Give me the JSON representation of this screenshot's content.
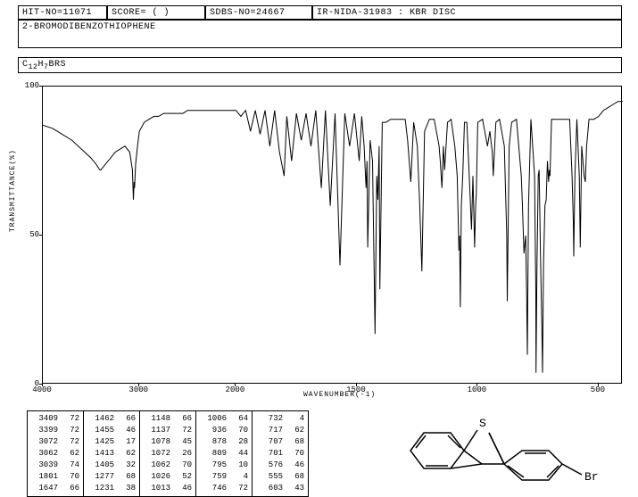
{
  "header": {
    "hit_no": "HIT-NO=11071",
    "score": "SCORE=   (   )",
    "sdbs_no": "SDBS-NO=24667",
    "ir_info": "IR-NIDA-31983 : KBR DISC",
    "compound": "2-BROMODIBENZOTHIOPHENE",
    "formula_prefix": "C",
    "formula_c": "12",
    "formula_mid": "H",
    "formula_h": "7",
    "formula_suffix": "BRS"
  },
  "axes": {
    "y_label": "TRANSMITTANCE(%)",
    "x_label": "WAVENUMBER(-1)",
    "y_ticks": [
      {
        "v": "100",
        "pos": 0
      },
      {
        "v": "50",
        "pos": 50
      },
      {
        "v": "0",
        "pos": 100
      }
    ],
    "x_ticks": [
      {
        "v": "4000",
        "wn": 4000
      },
      {
        "v": "3000",
        "wn": 3000
      },
      {
        "v": "2000",
        "wn": 2000
      },
      {
        "v": "1500",
        "wn": 1500
      },
      {
        "v": "1000",
        "wn": 1000
      },
      {
        "v": "500",
        "wn": 500
      }
    ],
    "x_break": 2000,
    "x_range_left": [
      4000,
      2000
    ],
    "x_range_right": [
      2000,
      400
    ],
    "break_frac": 0.333
  },
  "spectrum": {
    "color": "#000000",
    "points": [
      [
        4000,
        87
      ],
      [
        3900,
        86
      ],
      [
        3800,
        84
      ],
      [
        3700,
        82
      ],
      [
        3600,
        79
      ],
      [
        3500,
        76
      ],
      [
        3450,
        74
      ],
      [
        3409,
        72
      ],
      [
        3399,
        72
      ],
      [
        3350,
        74
      ],
      [
        3300,
        76
      ],
      [
        3250,
        78
      ],
      [
        3200,
        79
      ],
      [
        3150,
        80
      ],
      [
        3100,
        78
      ],
      [
        3072,
        72
      ],
      [
        3062,
        62
      ],
      [
        3055,
        68
      ],
      [
        3050,
        66
      ],
      [
        3039,
        74
      ],
      [
        3020,
        80
      ],
      [
        3000,
        85
      ],
      [
        2950,
        88
      ],
      [
        2900,
        89
      ],
      [
        2850,
        90
      ],
      [
        2800,
        90
      ],
      [
        2750,
        91
      ],
      [
        2700,
        91
      ],
      [
        2650,
        91
      ],
      [
        2600,
        91
      ],
      [
        2550,
        91
      ],
      [
        2500,
        92
      ],
      [
        2450,
        92
      ],
      [
        2400,
        92
      ],
      [
        2350,
        92
      ],
      [
        2300,
        92
      ],
      [
        2250,
        92
      ],
      [
        2200,
        92
      ],
      [
        2150,
        92
      ],
      [
        2100,
        92
      ],
      [
        2050,
        92
      ],
      [
        2000,
        92
      ],
      [
        1980,
        90
      ],
      [
        1960,
        92
      ],
      [
        1940,
        85
      ],
      [
        1920,
        92
      ],
      [
        1900,
        84
      ],
      [
        1880,
        92
      ],
      [
        1860,
        80
      ],
      [
        1840,
        92
      ],
      [
        1820,
        78
      ],
      [
        1801,
        70
      ],
      [
        1790,
        90
      ],
      [
        1770,
        75
      ],
      [
        1750,
        91
      ],
      [
        1730,
        82
      ],
      [
        1710,
        91
      ],
      [
        1690,
        80
      ],
      [
        1670,
        92
      ],
      [
        1647,
        66
      ],
      [
        1630,
        92
      ],
      [
        1610,
        60
      ],
      [
        1590,
        91
      ],
      [
        1570,
        40
      ],
      [
        1550,
        91
      ],
      [
        1530,
        80
      ],
      [
        1510,
        91
      ],
      [
        1490,
        75
      ],
      [
        1480,
        90
      ],
      [
        1470,
        80
      ],
      [
        1462,
        66
      ],
      [
        1458,
        75
      ],
      [
        1455,
        46
      ],
      [
        1445,
        82
      ],
      [
        1435,
        75
      ],
      [
        1425,
        17
      ],
      [
        1418,
        70
      ],
      [
        1413,
        62
      ],
      [
        1408,
        80
      ],
      [
        1405,
        32
      ],
      [
        1395,
        88
      ],
      [
        1380,
        88
      ],
      [
        1360,
        89
      ],
      [
        1340,
        89
      ],
      [
        1320,
        89
      ],
      [
        1300,
        89
      ],
      [
        1290,
        82
      ],
      [
        1277,
        68
      ],
      [
        1265,
        88
      ],
      [
        1250,
        80
      ],
      [
        1240,
        60
      ],
      [
        1231,
        38
      ],
      [
        1220,
        85
      ],
      [
        1200,
        89
      ],
      [
        1180,
        89
      ],
      [
        1160,
        80
      ],
      [
        1155,
        75
      ],
      [
        1148,
        66
      ],
      [
        1142,
        80
      ],
      [
        1137,
        72
      ],
      [
        1125,
        88
      ],
      [
        1110,
        89
      ],
      [
        1095,
        80
      ],
      [
        1085,
        70
      ],
      [
        1078,
        45
      ],
      [
        1075,
        50
      ],
      [
        1072,
        26
      ],
      [
        1068,
        60
      ],
      [
        1062,
        70
      ],
      [
        1055,
        88
      ],
      [
        1045,
        88
      ],
      [
        1035,
        70
      ],
      [
        1026,
        52
      ],
      [
        1020,
        70
      ],
      [
        1013,
        46
      ],
      [
        1009,
        60
      ],
      [
        1006,
        64
      ],
      [
        1000,
        88
      ],
      [
        980,
        89
      ],
      [
        960,
        80
      ],
      [
        950,
        85
      ],
      [
        940,
        78
      ],
      [
        936,
        70
      ],
      [
        925,
        88
      ],
      [
        910,
        89
      ],
      [
        890,
        80
      ],
      [
        880,
        50
      ],
      [
        878,
        28
      ],
      [
        870,
        80
      ],
      [
        860,
        88
      ],
      [
        840,
        89
      ],
      [
        820,
        70
      ],
      [
        815,
        60
      ],
      [
        809,
        44
      ],
      [
        802,
        50
      ],
      [
        798,
        30
      ],
      [
        795,
        10
      ],
      [
        790,
        60
      ],
      [
        780,
        89
      ],
      [
        765,
        70
      ],
      [
        760,
        30
      ],
      [
        759,
        4
      ],
      [
        755,
        40
      ],
      [
        750,
        70
      ],
      [
        746,
        72
      ],
      [
        740,
        40
      ],
      [
        735,
        20
      ],
      [
        732,
        4
      ],
      [
        728,
        40
      ],
      [
        722,
        60
      ],
      [
        717,
        62
      ],
      [
        712,
        75
      ],
      [
        707,
        68
      ],
      [
        704,
        72
      ],
      [
        701,
        70
      ],
      [
        695,
        89
      ],
      [
        680,
        89
      ],
      [
        660,
        89
      ],
      [
        640,
        89
      ],
      [
        620,
        89
      ],
      [
        610,
        70
      ],
      [
        605,
        55
      ],
      [
        603,
        43
      ],
      [
        598,
        70
      ],
      [
        590,
        89
      ],
      [
        580,
        70
      ],
      [
        576,
        46
      ],
      [
        570,
        80
      ],
      [
        565,
        75
      ],
      [
        560,
        70
      ],
      [
        555,
        68
      ],
      [
        550,
        80
      ],
      [
        540,
        89
      ],
      [
        520,
        89
      ],
      [
        500,
        90
      ],
      [
        480,
        92
      ],
      [
        460,
        93
      ],
      [
        440,
        94
      ],
      [
        420,
        95
      ],
      [
        400,
        95
      ]
    ]
  },
  "peak_table": {
    "columns": [
      [
        [
          3409,
          72
        ],
        [
          3399,
          72
        ],
        [
          3072,
          72
        ],
        [
          3062,
          62
        ],
        [
          3039,
          74
        ],
        [
          1801,
          70
        ],
        [
          1647,
          66
        ]
      ],
      [
        [
          1462,
          66
        ],
        [
          1455,
          46
        ],
        [
          1425,
          17
        ],
        [
          1413,
          62
        ],
        [
          1405,
          32
        ],
        [
          1277,
          68
        ],
        [
          1231,
          38
        ]
      ],
      [
        [
          1148,
          66
        ],
        [
          1137,
          72
        ],
        [
          1078,
          45
        ],
        [
          1072,
          26
        ],
        [
          1062,
          70
        ],
        [
          1026,
          52
        ],
        [
          1013,
          46
        ]
      ],
      [
        [
          1006,
          64
        ],
        [
          936,
          70
        ],
        [
          878,
          28
        ],
        [
          809,
          44
        ],
        [
          795,
          10
        ],
        [
          759,
          4
        ],
        [
          746,
          72
        ]
      ],
      [
        [
          732,
          4
        ],
        [
          717,
          62
        ],
        [
          707,
          68
        ],
        [
          701,
          70
        ],
        [
          576,
          46
        ],
        [
          555,
          68
        ],
        [
          603,
          43
        ]
      ]
    ]
  },
  "molecule": {
    "label_s": "S",
    "label_br": "Br"
  },
  "style": {
    "bg": "#ffffff",
    "fg": "#000000",
    "font": "Courier New"
  }
}
